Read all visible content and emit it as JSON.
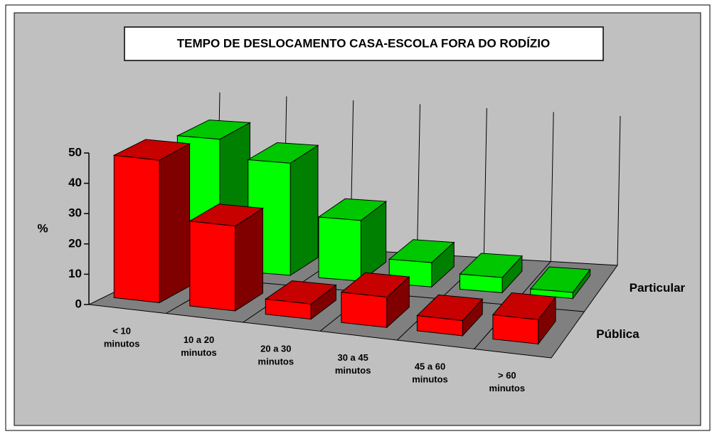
{
  "chart_data": {
    "type": "bar3d",
    "title": "TEMPO DE DESLOCAMENTO CASA-ESCOLA FORA DO RODÍZIO",
    "y_label": "%",
    "categories": [
      "< 10 minutos",
      "10 a 20 minutos",
      "20 a 30 minutos",
      "30 a 45 minutos",
      "45 a 60 minutos",
      "> 60 minutos"
    ],
    "series": [
      {
        "name": "Pública",
        "color": "#ff0000",
        "values": [
          47,
          28,
          5,
          10,
          5,
          8
        ]
      },
      {
        "name": "Particular",
        "color": "#00ff00",
        "values": [
          43,
          37,
          20,
          8,
          5,
          2
        ]
      }
    ],
    "ylim": [
      0,
      50
    ],
    "yticks": [
      0,
      10,
      20,
      30,
      40,
      50
    ]
  }
}
